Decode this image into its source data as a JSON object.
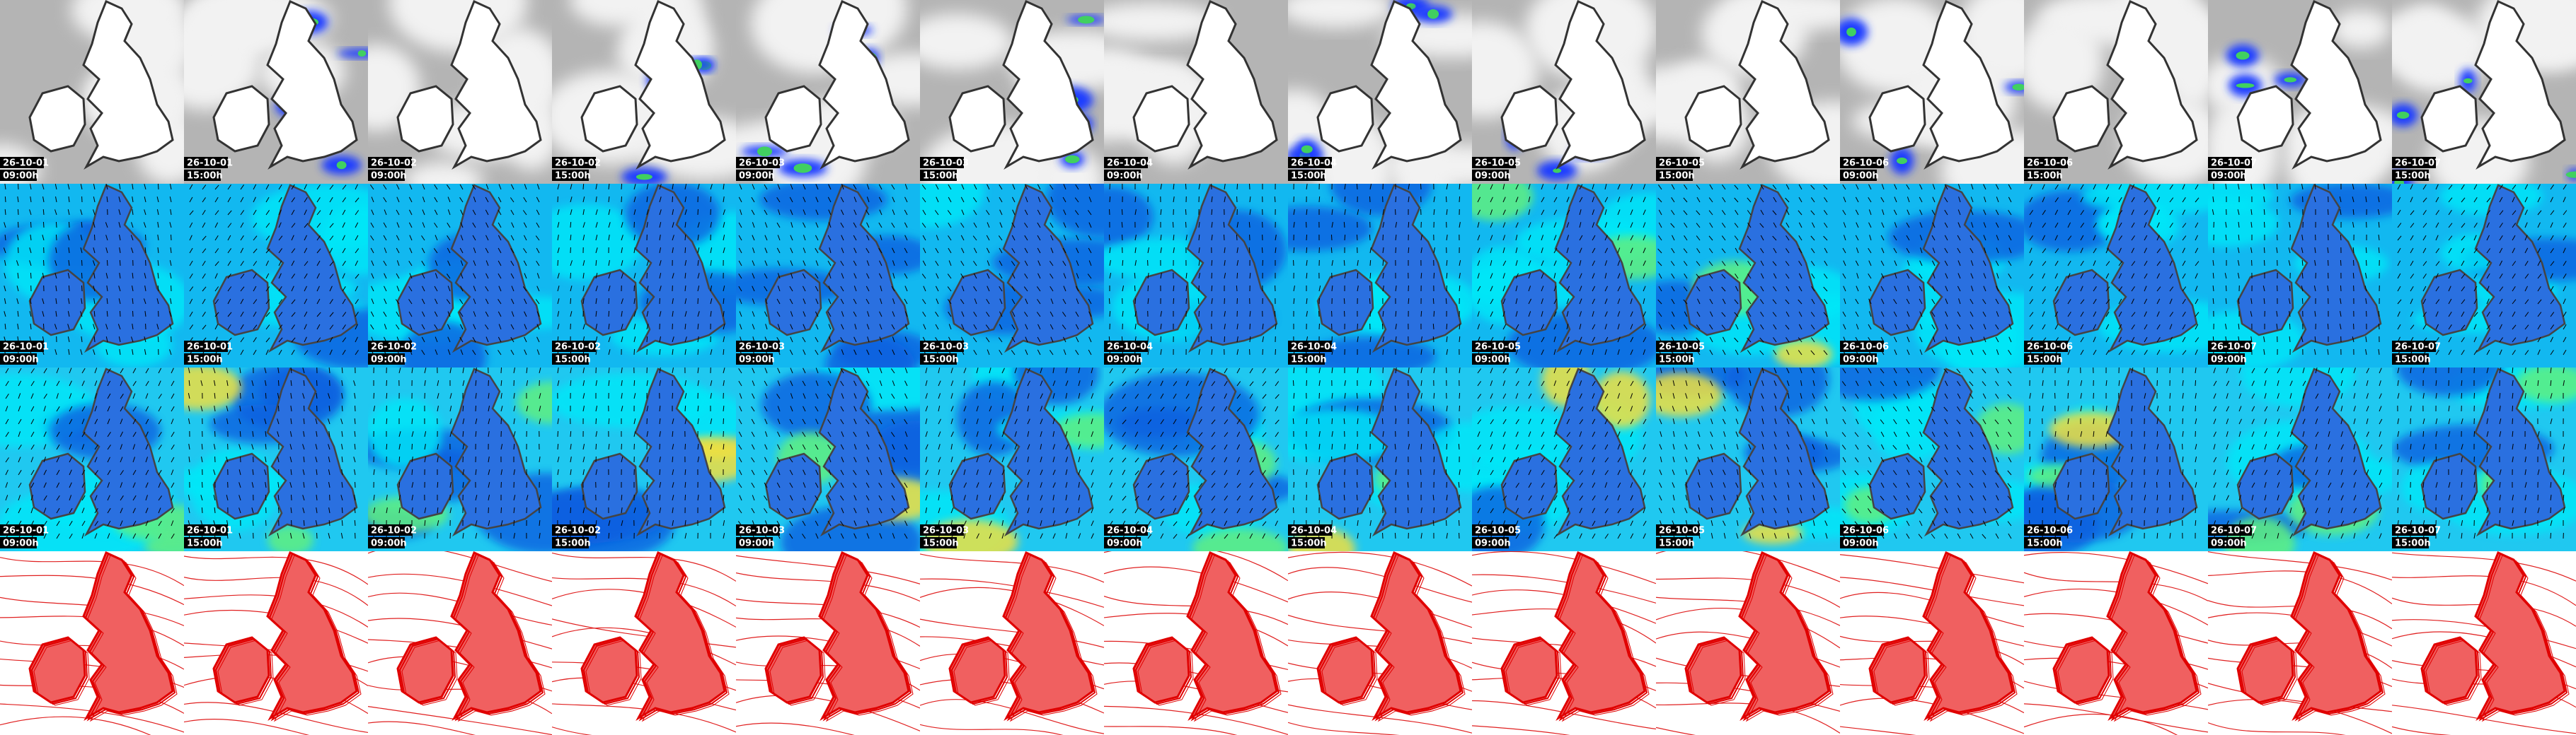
{
  "columns": [
    {
      "date": "26-10-01",
      "time": "09:00h"
    },
    {
      "date": "26-10-01",
      "time": "15:00h"
    },
    {
      "date": "26-10-02",
      "time": "09:00h"
    },
    {
      "date": "26-10-02",
      "time": "15:00h"
    },
    {
      "date": "26-10-03",
      "time": "09:00h"
    },
    {
      "date": "26-10-03",
      "time": "15:00h"
    },
    {
      "date": "26-10-04",
      "time": "09:00h"
    },
    {
      "date": "26-10-04",
      "time": "15:00h"
    },
    {
      "date": "26-10-05",
      "time": "09:00h"
    },
    {
      "date": "26-10-05",
      "time": "15:00h"
    },
    {
      "date": "26-10-06",
      "time": "09:00h"
    },
    {
      "date": "26-10-06",
      "time": "15:00h"
    },
    {
      "date": "26-10-07",
      "time": "09:00h"
    },
    {
      "date": "26-10-07",
      "time": "15:00h"
    }
  ]
}
